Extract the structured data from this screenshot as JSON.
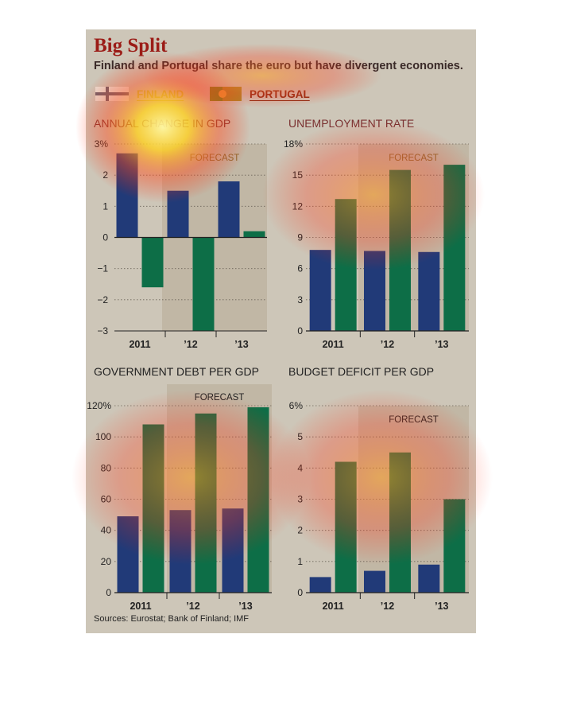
{
  "header": {
    "title": "Big Split",
    "subtitle": "Finland and Portugal share the euro but have divergent economies."
  },
  "legend": {
    "finland": "FINLAND",
    "portugal": "PORTUGAL"
  },
  "colors": {
    "finland": "#213a78",
    "portugal": "#0d6e47",
    "background": "#cdc6b8",
    "forecast_shade": "#bcb29f"
  },
  "sources": "Sources: Eurostat; Bank of Finland; IMF",
  "chart_data": [
    {
      "type": "bar",
      "title": "ANNUAL CHANGE IN GDP",
      "forecast_label": "FORECAST",
      "categories": [
        "2011",
        "’12",
        "’13"
      ],
      "series": [
        {
          "name": "FINLAND",
          "values": [
            2.7,
            1.5,
            1.8
          ]
        },
        {
          "name": "PORTUGAL",
          "values": [
            -1.6,
            -3.0,
            0.2
          ]
        }
      ],
      "ylim": [
        -3,
        3
      ],
      "yticks": [
        -3,
        -2,
        -1,
        0,
        1,
        2,
        3
      ],
      "ytick_labels": [
        "−3",
        "−2",
        "−1",
        "0",
        "1",
        "2",
        "3%"
      ]
    },
    {
      "type": "bar",
      "title": "UNEMPLOYMENT RATE",
      "forecast_label": "FORECAST",
      "categories": [
        "2011",
        "’12",
        "’13"
      ],
      "series": [
        {
          "name": "FINLAND",
          "values": [
            7.8,
            7.7,
            7.6
          ]
        },
        {
          "name": "PORTUGAL",
          "values": [
            12.7,
            15.5,
            16.0
          ]
        }
      ],
      "ylim": [
        0,
        18
      ],
      "yticks": [
        0,
        3,
        6,
        9,
        12,
        15,
        18
      ],
      "ytick_labels": [
        "0",
        "3",
        "6",
        "9",
        "12",
        "15",
        "18%"
      ]
    },
    {
      "type": "bar",
      "title": "GOVERNMENT DEBT PER GDP",
      "forecast_label": "FORECAST",
      "categories": [
        "2011",
        "’12",
        "’13"
      ],
      "series": [
        {
          "name": "FINLAND",
          "values": [
            49,
            53,
            54
          ]
        },
        {
          "name": "PORTUGAL",
          "values": [
            108,
            115,
            119
          ]
        }
      ],
      "ylim": [
        0,
        120
      ],
      "yticks": [
        0,
        20,
        40,
        60,
        80,
        100,
        120
      ],
      "ytick_labels": [
        "0",
        "20",
        "40",
        "60",
        "80",
        "100",
        "120%"
      ]
    },
    {
      "type": "bar",
      "title": "BUDGET DEFICIT PER GDP",
      "forecast_label": "FORECAST",
      "categories": [
        "2011",
        "’12",
        "’13"
      ],
      "series": [
        {
          "name": "FINLAND",
          "values": [
            0.5,
            0.7,
            0.9
          ]
        },
        {
          "name": "PORTUGAL",
          "values": [
            4.2,
            4.5,
            3.0
          ]
        }
      ],
      "ylim": [
        0,
        6
      ],
      "yticks": [
        0,
        1,
        2,
        3,
        4,
        5,
        6
      ],
      "ytick_labels": [
        "0",
        "1",
        "2",
        "3",
        "4",
        "5",
        "6%"
      ]
    }
  ]
}
